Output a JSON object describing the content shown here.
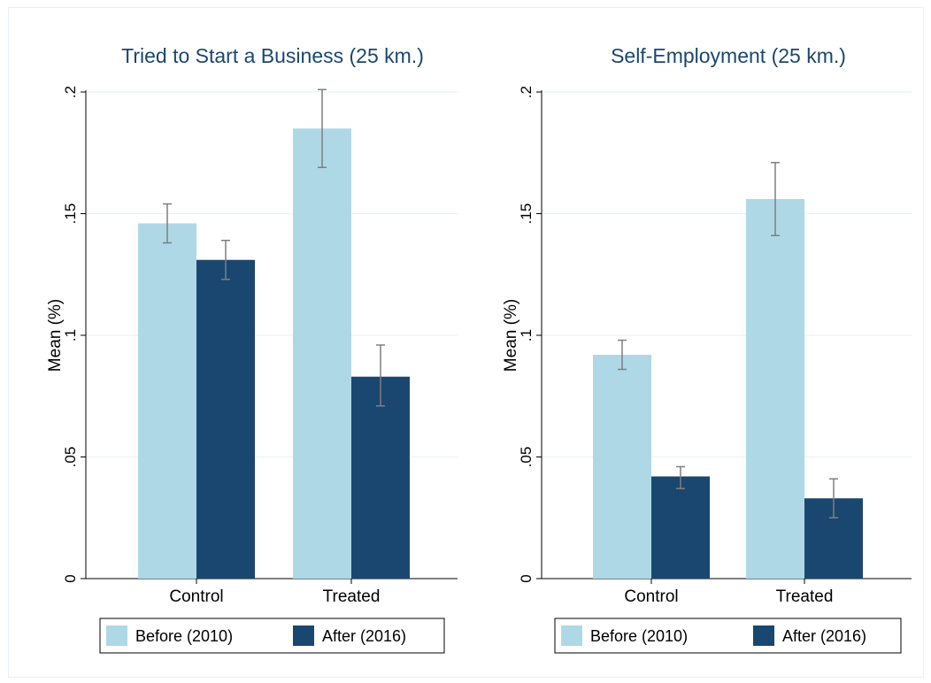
{
  "colors": {
    "before": "#aed8e6",
    "after": "#1a476f",
    "title": "#1a476f",
    "grid": "#eaf2f3",
    "error_bar": "#7f7f7f",
    "axis": "#000000",
    "background": "#ffffff"
  },
  "chart_data": [
    {
      "type": "bar",
      "title": "Tried to Start a Business (25 km.)",
      "ylabel": "Mean (%)",
      "xlabel": "",
      "categories": [
        "Control",
        "Treated"
      ],
      "ylim": [
        0,
        0.2
      ],
      "yticks": [
        0,
        0.05,
        0.1,
        0.15,
        0.2
      ],
      "ytick_labels": [
        "0",
        ".05",
        ".1",
        ".15",
        ".2"
      ],
      "grid": true,
      "legend": "bottom",
      "series": [
        {
          "name": "Before (2010)",
          "values": [
            0.146,
            0.185
          ],
          "ci_low": [
            0.138,
            0.169
          ],
          "ci_high": [
            0.154,
            0.201
          ]
        },
        {
          "name": "After (2016)",
          "values": [
            0.131,
            0.083
          ],
          "ci_low": [
            0.123,
            0.071
          ],
          "ci_high": [
            0.139,
            0.096
          ]
        }
      ]
    },
    {
      "type": "bar",
      "title": "Self-Employment (25 km.)",
      "ylabel": "Mean (%)",
      "xlabel": "",
      "categories": [
        "Control",
        "Treated"
      ],
      "ylim": [
        0,
        0.2
      ],
      "yticks": [
        0,
        0.05,
        0.1,
        0.15,
        0.2
      ],
      "ytick_labels": [
        "0",
        ".05",
        ".1",
        ".15",
        ".2"
      ],
      "grid": true,
      "legend": "bottom",
      "series": [
        {
          "name": "Before (2010)",
          "values": [
            0.092,
            0.156
          ],
          "ci_low": [
            0.086,
            0.141
          ],
          "ci_high": [
            0.098,
            0.171
          ]
        },
        {
          "name": "After (2016)",
          "values": [
            0.042,
            0.033
          ],
          "ci_low": [
            0.037,
            0.025
          ],
          "ci_high": [
            0.046,
            0.041
          ]
        }
      ]
    }
  ]
}
